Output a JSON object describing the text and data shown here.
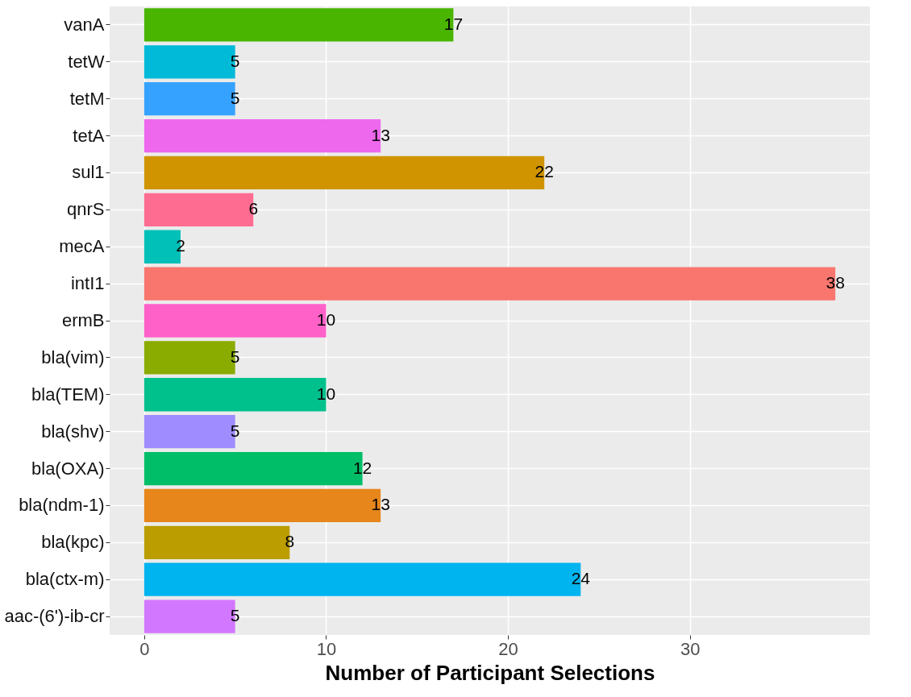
{
  "chart_data": {
    "type": "bar",
    "orientation": "horizontal",
    "xlabel": "Number of Participant Selections",
    "categories": [
      "vanA",
      "tetW",
      "tetM",
      "tetA",
      "sul1",
      "qnrS",
      "mecA",
      "intI1",
      "ermB",
      "bla(vim)",
      "bla(TEM)",
      "bla(shv)",
      "bla(OXA)",
      "bla(ndm-1)",
      "bla(kpc)",
      "bla(ctx-m)",
      "aac-(6')-ib-cr"
    ],
    "values": [
      17,
      5,
      5,
      13,
      22,
      6,
      2,
      38,
      10,
      5,
      10,
      5,
      12,
      13,
      8,
      24,
      5
    ],
    "colors": [
      "#49B500",
      "#00BAD8",
      "#35A2FF",
      "#ED68ED",
      "#CF9400",
      "#FF6C91",
      "#00C0B8",
      "#F8766D",
      "#FF61C9",
      "#8AAB00",
      "#00C08B",
      "#9F8CFF",
      "#00BE67",
      "#E7861B",
      "#BB9D00",
      "#00B4F0",
      "#D277FF"
    ],
    "xlim": [
      -1.9,
      39.9
    ],
    "xticks": [
      0,
      10,
      20,
      30
    ],
    "grid": true,
    "data_labels": true
  }
}
